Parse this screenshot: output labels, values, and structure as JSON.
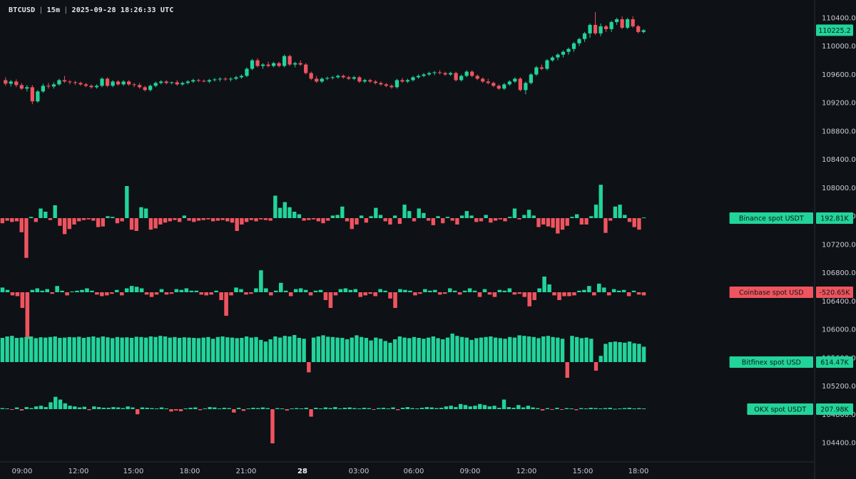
{
  "header": {
    "symbol": "BTCUSD",
    "interval": "15m",
    "datetime": "2025-09-28 18:26:33 UTC"
  },
  "colors": {
    "up": "#22d49a",
    "down": "#f0545f",
    "background": "#0e1116",
    "axis_text": "#c9ccd3",
    "axis_line": "#2a2e37"
  },
  "chart_data": {
    "type": "candlestick",
    "price_axis": {
      "ticks": [
        "110400.0",
        "110000.0",
        "109600.0",
        "109200.0",
        "108800.0",
        "108400.0",
        "108000.0",
        "107600.0",
        "107200.0",
        "106800.0",
        "106400.0",
        "106000.0",
        "105600.0",
        "105200.0",
        "104800.0",
        "104400.0"
      ],
      "range": [
        104240,
        110520
      ]
    },
    "last_price": "110225.2",
    "time_axis": {
      "ticks": [
        "09:00",
        "12:00",
        "15:00",
        "18:00",
        "21:00",
        "28",
        "03:00",
        "06:00",
        "09:00",
        "12:00",
        "15:00",
        "18:00"
      ],
      "bold_tick": "28"
    },
    "candles_ohlc": [
      [
        109520,
        109560,
        109440,
        109470
      ],
      [
        109470,
        109520,
        109430,
        109500
      ],
      [
        109500,
        109530,
        109420,
        109450
      ],
      [
        109450,
        109480,
        109380,
        109400
      ],
      [
        109400,
        109450,
        109360,
        109420
      ],
      [
        109420,
        109450,
        109180,
        109220
      ],
      [
        109220,
        109380,
        109200,
        109360
      ],
      [
        109360,
        109470,
        109340,
        109440
      ],
      [
        109440,
        109480,
        109400,
        109430
      ],
      [
        109430,
        109490,
        109400,
        109460
      ],
      [
        109460,
        109540,
        109440,
        109520
      ],
      [
        109520,
        109580,
        109480,
        109500
      ],
      [
        109500,
        109520,
        109460,
        109490
      ],
      [
        109490,
        109510,
        109450,
        109480
      ],
      [
        109480,
        109500,
        109440,
        109460
      ],
      [
        109460,
        109480,
        109420,
        109440
      ],
      [
        109440,
        109460,
        109400,
        109420
      ],
      [
        109420,
        109460,
        109400,
        109440
      ],
      [
        109440,
        109560,
        109420,
        109540
      ],
      [
        109540,
        109560,
        109420,
        109440
      ],
      [
        109440,
        109520,
        109420,
        109500
      ],
      [
        109500,
        109520,
        109440,
        109460
      ],
      [
        109460,
        109520,
        109440,
        109500
      ],
      [
        109500,
        109520,
        109440,
        109460
      ],
      [
        109460,
        109480,
        109420,
        109450
      ],
      [
        109450,
        109480,
        109400,
        109420
      ],
      [
        109420,
        109440,
        109360,
        109380
      ],
      [
        109380,
        109460,
        109360,
        109440
      ],
      [
        109440,
        109500,
        109420,
        109480
      ],
      [
        109480,
        109520,
        109460,
        109500
      ],
      [
        109500,
        109520,
        109460,
        109480
      ],
      [
        109480,
        109500,
        109460,
        109490
      ],
      [
        109490,
        109520,
        109440,
        109460
      ],
      [
        109460,
        109500,
        109440,
        109480
      ],
      [
        109480,
        109520,
        109460,
        109500
      ],
      [
        109500,
        109540,
        109480,
        109520
      ],
      [
        109520,
        109540,
        109490,
        109510
      ],
      [
        109510,
        109530,
        109490,
        109500
      ],
      [
        109500,
        109540,
        109480,
        109520
      ],
      [
        109520,
        109550,
        109500,
        109530
      ],
      [
        109530,
        109560,
        109500,
        109540
      ],
      [
        109540,
        109560,
        109510,
        109530
      ],
      [
        109530,
        109560,
        109500,
        109540
      ],
      [
        109540,
        109580,
        109520,
        109560
      ],
      [
        109560,
        109600,
        109540,
        109580
      ],
      [
        109580,
        109700,
        109560,
        109680
      ],
      [
        109680,
        109820,
        109660,
        109800
      ],
      [
        109800,
        109830,
        109700,
        109720
      ],
      [
        109720,
        109760,
        109680,
        109740
      ],
      [
        109740,
        109780,
        109700,
        109720
      ],
      [
        109720,
        109780,
        109700,
        109760
      ],
      [
        109760,
        109780,
        109700,
        109720
      ],
      [
        109720,
        109880,
        109700,
        109860
      ],
      [
        109860,
        109880,
        109720,
        109740
      ],
      [
        109740,
        109780,
        109700,
        109760
      ],
      [
        109760,
        109800,
        109720,
        109740
      ],
      [
        109740,
        109760,
        109600,
        109620
      ],
      [
        109620,
        109640,
        109520,
        109540
      ],
      [
        109540,
        109580,
        109480,
        109500
      ],
      [
        109500,
        109560,
        109480,
        109540
      ],
      [
        109540,
        109570,
        109520,
        109550
      ],
      [
        109550,
        109580,
        109530,
        109560
      ],
      [
        109560,
        109600,
        109540,
        109580
      ],
      [
        109580,
        109600,
        109540,
        109560
      ],
      [
        109560,
        109580,
        109520,
        109540
      ],
      [
        109540,
        109580,
        109520,
        109560
      ],
      [
        109560,
        109580,
        109480,
        109500
      ],
      [
        109500,
        109540,
        109480,
        109520
      ],
      [
        109520,
        109540,
        109480,
        109500
      ],
      [
        109500,
        109520,
        109460,
        109480
      ],
      [
        109480,
        109500,
        109440,
        109460
      ],
      [
        109460,
        109480,
        109420,
        109440
      ],
      [
        109440,
        109460,
        109400,
        109420
      ],
      [
        109420,
        109540,
        109400,
        109520
      ],
      [
        109520,
        109550,
        109480,
        109500
      ],
      [
        109500,
        109540,
        109480,
        109520
      ],
      [
        109520,
        109580,
        109500,
        109560
      ],
      [
        109560,
        109600,
        109540,
        109580
      ],
      [
        109580,
        109620,
        109560,
        109600
      ],
      [
        109600,
        109640,
        109580,
        109620
      ],
      [
        109620,
        109650,
        109590,
        109630
      ],
      [
        109630,
        109660,
        109600,
        109620
      ],
      [
        109620,
        109640,
        109580,
        109600
      ],
      [
        109600,
        109640,
        109580,
        109620
      ],
      [
        109620,
        109640,
        109500,
        109520
      ],
      [
        109520,
        109600,
        109500,
        109580
      ],
      [
        109580,
        109660,
        109560,
        109640
      ],
      [
        109640,
        109660,
        109560,
        109580
      ],
      [
        109580,
        109600,
        109520,
        109540
      ],
      [
        109540,
        109560,
        109480,
        109500
      ],
      [
        109500,
        109540,
        109460,
        109480
      ],
      [
        109480,
        109500,
        109420,
        109440
      ],
      [
        109440,
        109460,
        109380,
        109400
      ],
      [
        109400,
        109480,
        109380,
        109460
      ],
      [
        109460,
        109520,
        109440,
        109500
      ],
      [
        109500,
        109560,
        109480,
        109540
      ],
      [
        109540,
        109560,
        109360,
        109380
      ],
      [
        109380,
        109500,
        109320,
        109480
      ],
      [
        109480,
        109620,
        109460,
        109600
      ],
      [
        109600,
        109720,
        109580,
        109700
      ],
      [
        109700,
        109740,
        109660,
        109680
      ],
      [
        109680,
        109820,
        109660,
        109800
      ],
      [
        109800,
        109860,
        109780,
        109840
      ],
      [
        109840,
        109900,
        109800,
        109880
      ],
      [
        109880,
        109940,
        109840,
        109920
      ],
      [
        109920,
        109980,
        109880,
        109960
      ],
      [
        109960,
        110060,
        109920,
        110040
      ],
      [
        110040,
        110120,
        110000,
        110100
      ],
      [
        110100,
        110200,
        110060,
        110180
      ],
      [
        110180,
        110320,
        110120,
        110300
      ],
      [
        110300,
        110480,
        110160,
        110180
      ],
      [
        110180,
        110320,
        110140,
        110280
      ],
      [
        110280,
        110300,
        110200,
        110240
      ],
      [
        110240,
        110360,
        110200,
        110340
      ],
      [
        110340,
        110400,
        110300,
        110380
      ],
      [
        110380,
        110420,
        110240,
        110260
      ],
      [
        110260,
        110400,
        110240,
        110380
      ],
      [
        110380,
        110420,
        110260,
        110280
      ],
      [
        110280,
        110300,
        110180,
        110200
      ],
      [
        110200,
        110240,
        110180,
        110225
      ]
    ],
    "panels": [
      {
        "name": "Binance spot USDT",
        "value": "192.81K",
        "tag_color": "up",
        "values": [
          -0.08,
          -0.04,
          -0.06,
          -0.05,
          -0.22,
          -0.62,
          0.02,
          -0.06,
          0.15,
          0.1,
          -0.03,
          0.2,
          -0.12,
          -0.25,
          -0.17,
          -0.1,
          -0.05,
          -0.03,
          -0.02,
          -0.04,
          -0.14,
          -0.13,
          0.03,
          0.02,
          -0.08,
          -0.05,
          0.5,
          -0.18,
          -0.2,
          0.17,
          0.15,
          -0.18,
          -0.16,
          -0.1,
          -0.07,
          -0.05,
          -0.03,
          -0.06,
          0.04,
          -0.04,
          -0.06,
          -0.04,
          -0.03,
          -0.02,
          -0.05,
          -0.04,
          -0.03,
          -0.05,
          -0.07,
          -0.2,
          -0.1,
          -0.06,
          -0.03,
          -0.05,
          -0.02,
          -0.03,
          -0.04,
          0.35,
          0.16,
          0.25,
          0.17,
          0.1,
          0.06,
          -0.04,
          -0.03,
          -0.02,
          -0.05,
          -0.08,
          -0.04,
          0.04,
          0.05,
          0.18,
          -0.05,
          -0.17,
          -0.1,
          0.04,
          -0.07,
          0.03,
          0.16,
          0.05,
          -0.05,
          -0.1,
          0.04,
          -0.09,
          0.21,
          0.11,
          -0.05,
          0.15,
          0.08,
          -0.04,
          -0.11,
          0.03,
          -0.08,
          0.02,
          -0.04,
          -0.1,
          0.04,
          0.11,
          0.04,
          -0.06,
          -0.05,
          0.05,
          -0.07,
          -0.04,
          -0.02,
          -0.05,
          0.02,
          0.15,
          -0.02,
          0.05,
          0.13,
          0.04,
          -0.14,
          -0.1,
          -0.13,
          -0.15,
          -0.24,
          -0.18,
          -0.12,
          0.02,
          0.06,
          -0.1,
          -0.1,
          0.03,
          0.21,
          0.52,
          -0.23,
          -0.04,
          0.18,
          0.21,
          0.05,
          -0.06,
          -0.14,
          -0.18,
          0.01
        ],
        "scale": 90
      },
      {
        "name": "Coinbase spot USD",
        "value": "-520.65K",
        "tag_color": "down",
        "values": [
          0.06,
          0.03,
          -0.04,
          -0.05,
          -0.2,
          -0.6,
          0.03,
          0.05,
          0.02,
          0.04,
          -0.02,
          0.08,
          0.02,
          -0.04,
          0.01,
          0.02,
          0.03,
          0.05,
          0.02,
          -0.03,
          -0.05,
          -0.04,
          -0.02,
          0.03,
          -0.04,
          0.05,
          0.08,
          0.07,
          0.05,
          -0.03,
          -0.06,
          -0.03,
          0.04,
          -0.03,
          -0.02,
          0.04,
          0.03,
          0.05,
          0.02,
          0.02,
          -0.03,
          -0.04,
          -0.03,
          0.02,
          -0.1,
          -0.3,
          -0.04,
          0.06,
          0.04,
          -0.03,
          -0.02,
          0.05,
          0.28,
          0.05,
          -0.04,
          0.02,
          0.12,
          0.02,
          -0.05,
          0.04,
          0.05,
          0.03,
          -0.04,
          0.02,
          0.03,
          -0.1,
          -0.2,
          -0.04,
          0.04,
          0.05,
          0.03,
          0.04,
          -0.06,
          -0.04,
          -0.02,
          -0.05,
          0.04,
          0.02,
          -0.08,
          -0.2,
          0.04,
          0.03,
          0.02,
          -0.04,
          -0.02,
          0.04,
          0.02,
          0.03,
          -0.03,
          -0.02,
          0.05,
          0.02,
          -0.03,
          0.02,
          0.05,
          0.02,
          -0.06,
          0.04,
          -0.03,
          -0.06,
          0.03,
          0.02,
          0.05,
          -0.03,
          -0.02,
          -0.06,
          -0.18,
          -0.1,
          0.05,
          0.2,
          0.1,
          -0.04,
          -0.1,
          -0.05,
          -0.05,
          -0.04,
          0.02,
          0.03,
          0.08,
          -0.04,
          0.11,
          0.06,
          -0.04,
          0.04,
          0.02,
          0.03,
          -0.05,
          0.02,
          -0.03,
          -0.04
        ],
        "scale": 110
      },
      {
        "name": "Bitfinex spot USD",
        "value": "614.47K",
        "tag_color": "up",
        "values": [
          0.85,
          0.9,
          0.92,
          0.85,
          0.86,
          0.88,
          0.9,
          0.84,
          0.87,
          0.86,
          0.88,
          0.9,
          0.85,
          0.86,
          0.88,
          0.87,
          0.89,
          0.85,
          0.88,
          0.9,
          0.86,
          0.9,
          0.87,
          0.84,
          0.88,
          0.86,
          0.87,
          0.85,
          0.89,
          0.88,
          0.86,
          0.9,
          0.88,
          0.92,
          0.9,
          0.86,
          0.88,
          0.85,
          0.87,
          0.86,
          0.85,
          0.84,
          0.86,
          0.88,
          0.82,
          0.88,
          0.9,
          0.87,
          0.86,
          0.84,
          0.85,
          0.9,
          0.86,
          0.88,
          0.78,
          0.72,
          0.8,
          0.9,
          0.86,
          0.92,
          0.9,
          0.95,
          0.85,
          0.82,
          -0.36,
          0.86,
          0.9,
          0.94,
          0.89,
          0.88,
          0.86,
          0.85,
          0.8,
          0.86,
          0.94,
          0.88,
          0.85,
          0.76,
          0.86,
          0.82,
          0.74,
          0.68,
          0.8,
          0.9,
          0.86,
          0.84,
          0.88,
          0.85,
          0.82,
          0.86,
          0.9,
          0.84,
          0.8,
          0.86,
          1.0,
          0.92,
          0.88,
          0.86,
          0.78,
          0.84,
          0.86,
          0.88,
          0.9,
          0.86,
          0.84,
          0.82,
          0.88,
          0.86,
          0.94,
          0.92,
          0.9,
          0.88,
          0.84,
          0.9,
          0.92,
          0.88,
          0.86,
          0.82,
          -0.55,
          0.92,
          0.88,
          0.84,
          0.86,
          0.82,
          -0.3,
          0.22,
          0.64,
          0.7,
          0.72,
          0.7,
          0.68,
          0.72,
          0.66,
          0.64,
          0.54
        ],
        "scale": 40
      },
      {
        "name": "OKX spot USDT",
        "value": "207.98K",
        "tag_color": "up",
        "values": [
          0.03,
          0.02,
          -0.02,
          0.05,
          -0.04,
          0.06,
          0.03,
          0.08,
          0.1,
          0.06,
          0.2,
          0.36,
          0.28,
          0.17,
          0.1,
          0.08,
          0.05,
          0.07,
          -0.03,
          0.08,
          0.06,
          0.04,
          0.04,
          0.06,
          0.05,
          0.03,
          0.08,
          0.05,
          -0.15,
          0.05,
          0.04,
          0.03,
          0.02,
          0.05,
          0.02,
          -0.07,
          -0.04,
          -0.06,
          0.02,
          0.04,
          0.05,
          -0.03,
          0.02,
          0.06,
          0.05,
          0.02,
          0.04,
          0.03,
          -0.1,
          0.04,
          -0.05,
          0.02,
          0.04,
          0.03,
          0.05,
          0.03,
          -1.0,
          0.03,
          0.02,
          -0.04,
          0.02,
          0.03,
          0.02,
          0.04,
          -0.22,
          0.04,
          0.02,
          0.05,
          0.03,
          0.06,
          0.02,
          0.04,
          0.05,
          0.03,
          0.02,
          0.04,
          0.03,
          -0.02,
          0.03,
          0.04,
          0.02,
          0.05,
          -0.03,
          0.04,
          0.06,
          0.03,
          0.02,
          0.04,
          0.06,
          0.05,
          0.03,
          0.04,
          0.08,
          0.1,
          0.06,
          0.15,
          0.12,
          0.08,
          0.1,
          0.15,
          0.12,
          0.08,
          0.1,
          0.04,
          0.28,
          0.06,
          0.04,
          0.12,
          0.05,
          0.1,
          0.05,
          0.03,
          -0.04,
          0.03,
          -0.02,
          0.04,
          -0.02,
          0.03,
          0.02,
          -0.03,
          0.03,
          0.02,
          0.04,
          0.03,
          0.02,
          0.03,
          0.04,
          0.01,
          0.02,
          0.03,
          0.04,
          0.02,
          0.03,
          0.02
        ],
        "scale": 48
      }
    ]
  }
}
